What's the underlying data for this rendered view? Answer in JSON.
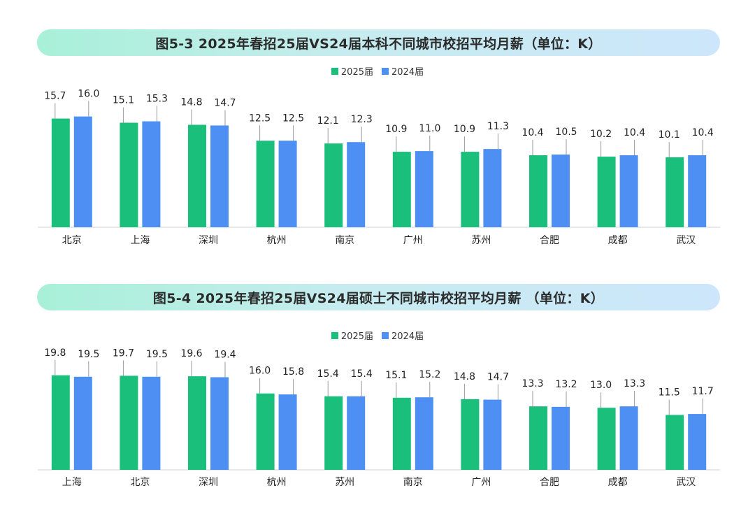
{
  "colors": {
    "s2025": "#19bf7a",
    "s2024": "#4d8ff3",
    "errbar": "#9a9a9a",
    "axis": "#d0d0d0"
  },
  "chart_data": [
    {
      "type": "bar",
      "title": "图5-3 2025年春招25届VS24届本科不同城市校招平均月薪（单位：K）",
      "categories": [
        "北京",
        "上海",
        "深圳",
        "杭州",
        "南京",
        "广州",
        "苏州",
        "合肥",
        "成都",
        "武汉"
      ],
      "series": [
        {
          "name": "2025届",
          "values": [
            15.7,
            15.1,
            14.8,
            12.5,
            12.1,
            10.9,
            10.9,
            10.4,
            10.2,
            10.1
          ]
        },
        {
          "name": "2024届",
          "values": [
            16.0,
            15.3,
            14.7,
            12.5,
            12.3,
            11.0,
            11.3,
            10.5,
            10.4,
            10.4
          ]
        }
      ],
      "legend": "top-center",
      "grid": false
    },
    {
      "type": "bar",
      "title": "图5-4 2025年春招25届VS24届硕士不同城市校招平均月薪 （单位：K）",
      "categories": [
        "上海",
        "北京",
        "深圳",
        "杭州",
        "苏州",
        "南京",
        "广州",
        "合肥",
        "成都",
        "武汉"
      ],
      "series": [
        {
          "name": "2025届",
          "values": [
            19.8,
            19.7,
            19.6,
            16.0,
            15.4,
            15.1,
            14.8,
            13.3,
            13.0,
            11.5
          ]
        },
        {
          "name": "2024届",
          "values": [
            19.5,
            19.5,
            19.4,
            15.8,
            15.4,
            15.2,
            14.7,
            13.2,
            13.3,
            11.7
          ]
        }
      ],
      "legend": "top-center",
      "grid": false
    }
  ]
}
